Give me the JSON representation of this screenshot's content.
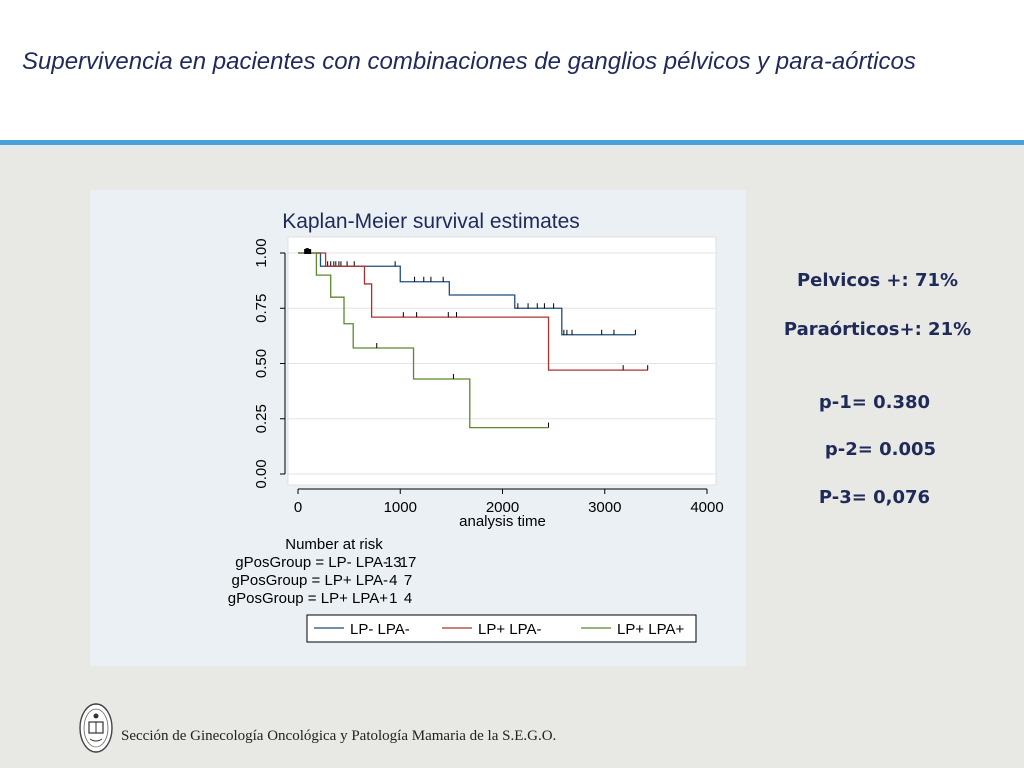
{
  "slide": {
    "title": "Supervivencia en pacientes con combinaciones de ganglios pélvicos  y para-aórticos",
    "footer": "Sección de Ginecología Oncológica y Patología Mamaria de la S.E.G.O."
  },
  "stats": {
    "pelvicos": "Pelvicos +: 71%",
    "paraorticos": "Paraórticos+: 21%",
    "p1": "p-1= 0.380",
    "p2": "p-2= 0.005",
    "p3": "P-3= 0,076"
  },
  "colors": {
    "header_rule": "#4aa0d8",
    "text_navy": "#1f2a5a",
    "series": [
      "#1f4e79",
      "#b03030",
      "#5a8a2a"
    ]
  },
  "chart_data": {
    "type": "line",
    "step": true,
    "title": "Kaplan-Meier survival estimates",
    "xlabel": "analysis time",
    "ylabel": "",
    "xlim": [
      0,
      4000
    ],
    "ylim": [
      0,
      1
    ],
    "xticks": [
      0,
      1000,
      2000,
      3000,
      4000
    ],
    "xtick_labels": [
      "0",
      "1000",
      "2000",
      "3000",
      "4000"
    ],
    "yticks": [
      0,
      0.25,
      0.5,
      0.75,
      1
    ],
    "ytick_labels": [
      "0.00",
      "0.25",
      "0.50",
      "0.75",
      "1.00"
    ],
    "grid": true,
    "legend": "bottom",
    "series": [
      {
        "name": "LP- LPA-",
        "steps": [
          [
            0,
            1.0
          ],
          [
            220,
            0.94
          ],
          [
            1000,
            0.87
          ],
          [
            1480,
            0.81
          ],
          [
            2120,
            0.75
          ],
          [
            2580,
            0.63
          ],
          [
            3300,
            0.63
          ]
        ],
        "censored": [
          [
            80,
            1.0
          ],
          [
            290,
            0.94
          ],
          [
            320,
            0.94
          ],
          [
            350,
            0.94
          ],
          [
            370,
            0.94
          ],
          [
            400,
            0.94
          ],
          [
            420,
            0.94
          ],
          [
            480,
            0.94
          ],
          [
            550,
            0.94
          ],
          [
            950,
            0.94
          ],
          [
            1140,
            0.87
          ],
          [
            1230,
            0.87
          ],
          [
            1300,
            0.87
          ],
          [
            1420,
            0.87
          ],
          [
            2150,
            0.75
          ],
          [
            2250,
            0.75
          ],
          [
            2340,
            0.75
          ],
          [
            2410,
            0.75
          ],
          [
            2500,
            0.75
          ],
          [
            2600,
            0.63
          ],
          [
            2630,
            0.63
          ],
          [
            2680,
            0.63
          ],
          [
            2970,
            0.63
          ],
          [
            3090,
            0.63
          ],
          [
            3300,
            0.63
          ]
        ]
      },
      {
        "name": "LP+ LPA-",
        "steps": [
          [
            0,
            1.0
          ],
          [
            270,
            0.94
          ],
          [
            650,
            0.86
          ],
          [
            720,
            0.71
          ],
          [
            2450,
            0.47
          ],
          [
            3420,
            0.47
          ]
        ],
        "censored": [
          [
            100,
            1.0
          ],
          [
            1030,
            0.71
          ],
          [
            1160,
            0.71
          ],
          [
            1470,
            0.71
          ],
          [
            1550,
            0.71
          ],
          [
            3180,
            0.47
          ],
          [
            3420,
            0.47
          ]
        ]
      },
      {
        "name": "LP+ LPA+",
        "steps": [
          [
            0,
            1.0
          ],
          [
            180,
            0.9
          ],
          [
            320,
            0.8
          ],
          [
            450,
            0.68
          ],
          [
            540,
            0.57
          ],
          [
            1130,
            0.43
          ],
          [
            1680,
            0.21
          ],
          [
            2450,
            0.21
          ]
        ],
        "censored": [
          [
            90,
            1.0
          ],
          [
            770,
            0.57
          ],
          [
            1520,
            0.43
          ],
          [
            2450,
            0.21
          ]
        ]
      }
    ],
    "risk_table": {
      "title": "Number at risk",
      "columns": [
        0,
        1000
      ],
      "rows": [
        {
          "label": "gPosGroup = LP- LPA-",
          "values": [
            "17",
            "13"
          ]
        },
        {
          "label": "gPosGroup = LP+ LPA-",
          "values": [
            "7",
            "4"
          ]
        },
        {
          "label": "gPosGroup = LP+ LPA+",
          "values": [
            "4",
            "1"
          ]
        }
      ]
    }
  }
}
